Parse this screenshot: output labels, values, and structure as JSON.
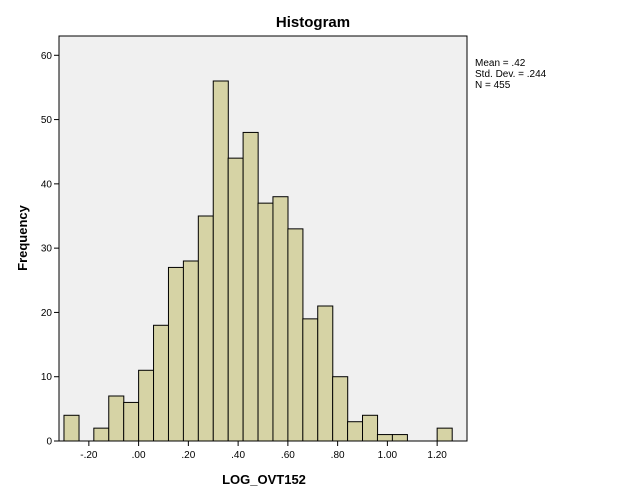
{
  "chart_data": {
    "type": "bar",
    "title": "Histogram",
    "xlabel": "LOG_OVT152",
    "ylabel": "Frequency",
    "ylim": [
      0,
      63
    ],
    "xlim": [
      -0.32,
      1.32
    ],
    "y_ticks": [
      "0",
      "10",
      "20",
      "30",
      "40",
      "50",
      "60"
    ],
    "x_ticks": [
      "-.20",
      ".00",
      ".20",
      ".40",
      ".60",
      ".80",
      "1.00",
      "1.20"
    ],
    "bin_width": 0.0605,
    "bins": [
      {
        "start": -0.3,
        "count": 4
      },
      {
        "start": -0.18,
        "count": 2
      },
      {
        "start": -0.12,
        "count": 7
      },
      {
        "start": -0.06,
        "count": 6
      },
      {
        "start": 0.0,
        "count": 11
      },
      {
        "start": 0.06,
        "count": 18
      },
      {
        "start": 0.12,
        "count": 27
      },
      {
        "start": 0.18,
        "count": 28
      },
      {
        "start": 0.24,
        "count": 35
      },
      {
        "start": 0.3,
        "count": 56
      },
      {
        "start": 0.36,
        "count": 44
      },
      {
        "start": 0.42,
        "count": 48
      },
      {
        "start": 0.48,
        "count": 37
      },
      {
        "start": 0.54,
        "count": 38
      },
      {
        "start": 0.6,
        "count": 33
      },
      {
        "start": 0.66,
        "count": 19
      },
      {
        "start": 0.72,
        "count": 21
      },
      {
        "start": 0.78,
        "count": 10
      },
      {
        "start": 0.84,
        "count": 3
      },
      {
        "start": 0.9,
        "count": 4
      },
      {
        "start": 0.96,
        "count": 1
      },
      {
        "start": 1.02,
        "count": 1
      },
      {
        "start": 1.2,
        "count": 2
      }
    ],
    "stats": {
      "mean": "Mean = .42",
      "std_dev": "Std. Dev. = .244",
      "n": "N = 455"
    },
    "colors": {
      "bar_fill": "#d6d3a5",
      "bar_stroke": "#000000",
      "plot_bg": "#f0f0f0"
    },
    "grid": false
  }
}
